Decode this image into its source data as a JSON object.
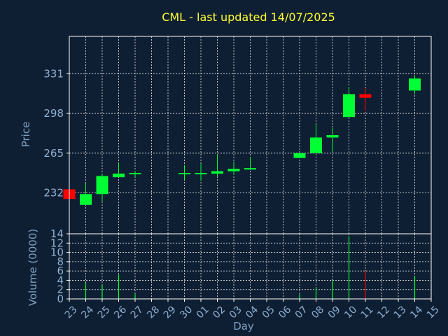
{
  "chart_data": {
    "type": "candlestick",
    "title": "CML - last updated 14/07/2025",
    "xlabel": "Day",
    "ylabel": "Price",
    "volume_ylabel": "Volume (0000)",
    "x_tick_labels": [
      "23",
      "24",
      "25",
      "26",
      "27",
      "28",
      "29",
      "30",
      "01",
      "02",
      "03",
      "04",
      "05",
      "06",
      "07",
      "08",
      "09",
      "10",
      "11",
      "12",
      "13",
      "14",
      "15"
    ],
    "price_ticks": [
      232,
      265,
      298,
      331
    ],
    "price_ylim": [
      198,
      362
    ],
    "volume_ticks": [
      0,
      2,
      4,
      6,
      8,
      10,
      12,
      14
    ],
    "volume_ylim": [
      0,
      14
    ],
    "grid": true,
    "colors": {
      "background": "#0f1f33",
      "up": "#00ff33",
      "down": "#ff0000",
      "title": "#ffff33",
      "axis_text": "#8fb0d0",
      "grid": "#ffffff"
    },
    "candles": [
      {
        "day": "23",
        "open": 235,
        "high": 235,
        "low": 227,
        "close": 227,
        "volume": 0
      },
      {
        "day": "24",
        "open": 222,
        "high": 240,
        "low": 222,
        "close": 231,
        "volume": 3.5
      },
      {
        "day": "25",
        "open": 231,
        "high": 248,
        "low": 225,
        "close": 246,
        "volume": 3
      },
      {
        "day": "26",
        "open": 245,
        "high": 257,
        "low": 245,
        "close": 248,
        "volume": 5.2
      },
      {
        "day": "27",
        "open": 248,
        "high": 250,
        "low": 245,
        "close": 248,
        "volume": 1
      },
      {
        "day": "30",
        "open": 248,
        "high": 255,
        "low": 243,
        "close": 248,
        "volume": 0
      },
      {
        "day": "01",
        "open": 248,
        "high": 256,
        "low": 242,
        "close": 248,
        "volume": 0
      },
      {
        "day": "02",
        "open": 248,
        "high": 264,
        "low": 246,
        "close": 250,
        "volume": 0
      },
      {
        "day": "03",
        "open": 250,
        "high": 258,
        "low": 247,
        "close": 252,
        "volume": 0
      },
      {
        "day": "04",
        "open": 252,
        "high": 262,
        "low": 251,
        "close": 252,
        "volume": 0
      },
      {
        "day": "07",
        "open": 261,
        "high": 265,
        "low": 261,
        "close": 265,
        "volume": 1
      },
      {
        "day": "08",
        "open": 265,
        "high": 289,
        "low": 265,
        "close": 278,
        "volume": 2.5
      },
      {
        "day": "09",
        "open": 278,
        "high": 286,
        "low": 266,
        "close": 280,
        "volume": 4
      },
      {
        "day": "10",
        "open": 295,
        "high": 320,
        "low": 295,
        "close": 314,
        "volume": 13.5
      },
      {
        "day": "11",
        "open": 314,
        "high": 319,
        "low": 300,
        "close": 311,
        "volume": 6
      },
      {
        "day": "14",
        "open": 317,
        "high": 330,
        "low": 314,
        "close": 327,
        "volume": 5
      }
    ]
  }
}
